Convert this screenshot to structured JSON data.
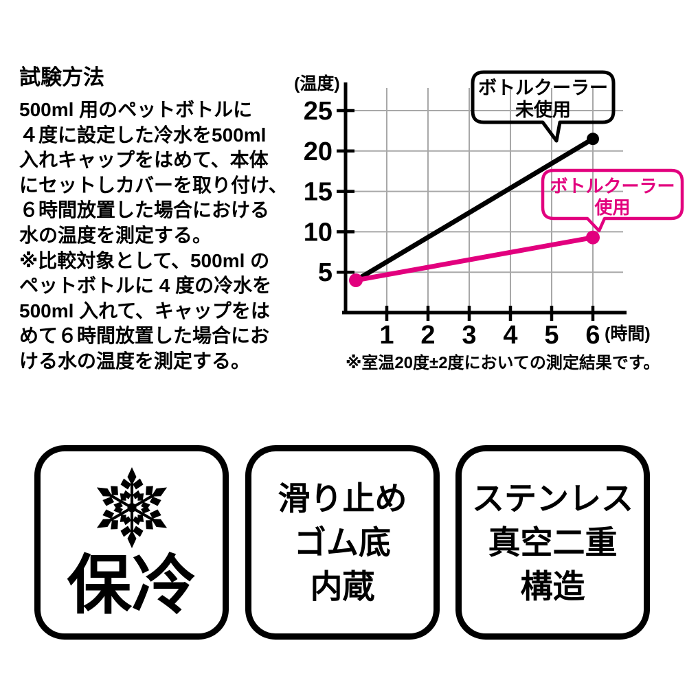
{
  "method": {
    "title": "試験方法",
    "lines": [
      "500ml 用のペットボトルに",
      "４度に設定した冷水を500ml",
      "入れキャップをはめて、本体",
      "にセットしカバーを取り付け、",
      "６時間放置した場合における",
      "水の温度を測定する。",
      "※比較対象として、500ml の",
      "ペットボトルに 4 度の冷水を",
      "500ml 入れて、キャップをは",
      "めて６時間放置した場合にお",
      "ける水の温度を測定する。"
    ]
  },
  "chart_data": {
    "type": "line",
    "title": "",
    "ylabel": "(温度)",
    "xlabel": "(時間)",
    "y_ticks": [
      25,
      20,
      15,
      10,
      5
    ],
    "x_ticks": [
      1,
      2,
      3,
      4,
      5,
      6
    ],
    "xlim": [
      0,
      7
    ],
    "ylim": [
      0,
      27.5
    ],
    "grid": true,
    "series": [
      {
        "name": "ボトルクーラー未使用",
        "color": "#000000",
        "x": [
          0.25,
          6
        ],
        "y": [
          4,
          21.5
        ],
        "markers": [
          false,
          true
        ]
      },
      {
        "name": "ボトルクーラー使用",
        "color": "#e2007e",
        "x": [
          0.25,
          6
        ],
        "y": [
          4,
          9.3
        ],
        "markers": [
          true,
          true
        ]
      }
    ],
    "annotations": [
      {
        "series": "ボトルクーラー未使用",
        "lines": [
          "ボトルクーラー",
          "未使用"
        ],
        "color": "#000000"
      },
      {
        "series": "ボトルクーラー使用",
        "lines": [
          "ボトルクーラー",
          "使用"
        ],
        "color": "#e2007e"
      }
    ],
    "footnote": "※室温20度±2度においての測定結果です。"
  },
  "badges": [
    {
      "icon": "snowflake-icon",
      "lines": [
        "保冷"
      ]
    },
    {
      "lines": [
        "滑り止め",
        "ゴム底",
        "内蔵"
      ]
    },
    {
      "lines": [
        "ステンレス",
        "真空二重",
        "構造"
      ]
    }
  ],
  "colors": {
    "accent_pink": "#e2007e",
    "grid": "#a8a8a8",
    "black": "#000000"
  }
}
